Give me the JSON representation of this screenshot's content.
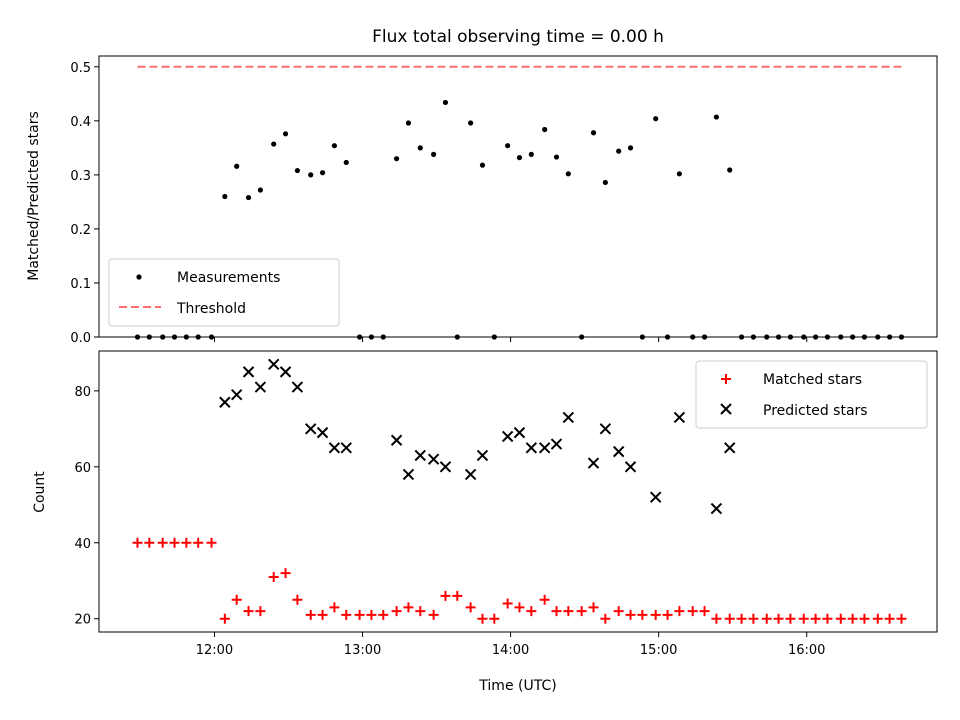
{
  "chart_data": [
    {
      "type": "scatter",
      "title": "Flux total observing time = 0.00 h",
      "xlabel": "",
      "ylabel": "Matched/Predicted stars",
      "xlim": [
        11.22,
        16.88
      ],
      "ylim": [
        0.0,
        0.52
      ],
      "yticks": [
        0.0,
        0.1,
        0.2,
        0.3,
        0.4,
        0.5
      ],
      "ytick_labels": [
        "0.0",
        "0.1",
        "0.2",
        "0.3",
        "0.4",
        "0.5"
      ],
      "legend_position": "lower-left",
      "series": [
        {
          "name": "Measurements",
          "marker": "dot",
          "color": "#000000",
          "points": [
            [
              11.48,
              0.0
            ],
            [
              11.56,
              0.0
            ],
            [
              11.65,
              0.0
            ],
            [
              11.73,
              0.0
            ],
            [
              11.81,
              0.0
            ],
            [
              11.89,
              0.0
            ],
            [
              11.98,
              0.0
            ],
            [
              12.07,
              0.26
            ],
            [
              12.15,
              0.316
            ],
            [
              12.23,
              0.258
            ],
            [
              12.31,
              0.272
            ],
            [
              12.4,
              0.357
            ],
            [
              12.48,
              0.376
            ],
            [
              12.56,
              0.308
            ],
            [
              12.65,
              0.3
            ],
            [
              12.73,
              0.304
            ],
            [
              12.81,
              0.354
            ],
            [
              12.89,
              0.323
            ],
            [
              12.98,
              0.0
            ],
            [
              13.06,
              0.0
            ],
            [
              13.14,
              0.0
            ],
            [
              13.23,
              0.33
            ],
            [
              13.31,
              0.396
            ],
            [
              13.39,
              0.35
            ],
            [
              13.48,
              0.338
            ],
            [
              13.56,
              0.434
            ],
            [
              13.64,
              0.0
            ],
            [
              13.73,
              0.396
            ],
            [
              13.81,
              0.318
            ],
            [
              13.89,
              0.0
            ],
            [
              13.98,
              0.354
            ],
            [
              14.06,
              0.332
            ],
            [
              14.14,
              0.338
            ],
            [
              14.23,
              0.384
            ],
            [
              14.31,
              0.333
            ],
            [
              14.39,
              0.302
            ],
            [
              14.48,
              0.0
            ],
            [
              14.56,
              0.378
            ],
            [
              14.64,
              0.286
            ],
            [
              14.73,
              0.344
            ],
            [
              14.81,
              0.35
            ],
            [
              14.89,
              0.0
            ],
            [
              14.98,
              0.404
            ],
            [
              15.06,
              0.0
            ],
            [
              15.14,
              0.302
            ],
            [
              15.23,
              0.0
            ],
            [
              15.31,
              0.0
            ],
            [
              15.39,
              0.407
            ],
            [
              15.48,
              0.309
            ],
            [
              15.56,
              0.0
            ],
            [
              15.64,
              0.0
            ],
            [
              15.73,
              0.0
            ],
            [
              15.81,
              0.0
            ],
            [
              15.89,
              0.0
            ],
            [
              15.98,
              0.0
            ],
            [
              16.06,
              0.0
            ],
            [
              16.14,
              0.0
            ],
            [
              16.23,
              0.0
            ],
            [
              16.31,
              0.0
            ],
            [
              16.39,
              0.0
            ],
            [
              16.48,
              0.0
            ],
            [
              16.56,
              0.0
            ],
            [
              16.64,
              0.0
            ]
          ]
        },
        {
          "name": "Threshold",
          "marker": "dashed-line",
          "color": "#ff6f6f",
          "points": [
            [
              11.48,
              0.5
            ],
            [
              16.64,
              0.5
            ]
          ]
        }
      ]
    },
    {
      "type": "scatter",
      "title": "",
      "xlabel": "Time (UTC)",
      "ylabel": "Count",
      "xlim": [
        11.22,
        16.88
      ],
      "ylim": [
        16.5,
        90.5
      ],
      "xticks": [
        12,
        13,
        14,
        15,
        16
      ],
      "xtick_labels": [
        "12:00",
        "13:00",
        "14:00",
        "15:00",
        "16:00"
      ],
      "yticks": [
        20,
        40,
        60,
        80
      ],
      "ytick_labels": [
        "20",
        "40",
        "60",
        "80"
      ],
      "legend_position": "top-right",
      "series": [
        {
          "name": "Matched stars",
          "marker": "plus",
          "color": "#ff0000",
          "points": [
            [
              11.48,
              40
            ],
            [
              11.56,
              40
            ],
            [
              11.65,
              40
            ],
            [
              11.73,
              40
            ],
            [
              11.81,
              40
            ],
            [
              11.89,
              40
            ],
            [
              11.98,
              40
            ],
            [
              12.07,
              20
            ],
            [
              12.15,
              25
            ],
            [
              12.23,
              22
            ],
            [
              12.31,
              22
            ],
            [
              12.4,
              31
            ],
            [
              12.48,
              32
            ],
            [
              12.56,
              25
            ],
            [
              12.65,
              21
            ],
            [
              12.73,
              21
            ],
            [
              12.81,
              23
            ],
            [
              12.89,
              21
            ],
            [
              12.98,
              21
            ],
            [
              13.06,
              21
            ],
            [
              13.14,
              21
            ],
            [
              13.23,
              22
            ],
            [
              13.31,
              23
            ],
            [
              13.39,
              22
            ],
            [
              13.48,
              21
            ],
            [
              13.56,
              26
            ],
            [
              13.64,
              26
            ],
            [
              13.73,
              23
            ],
            [
              13.81,
              20
            ],
            [
              13.89,
              20
            ],
            [
              13.98,
              24
            ],
            [
              14.06,
              23
            ],
            [
              14.14,
              22
            ],
            [
              14.23,
              25
            ],
            [
              14.31,
              22
            ],
            [
              14.39,
              22
            ],
            [
              14.48,
              22
            ],
            [
              14.56,
              23
            ],
            [
              14.64,
              20
            ],
            [
              14.73,
              22
            ],
            [
              14.81,
              21
            ],
            [
              14.89,
              21
            ],
            [
              14.98,
              21
            ],
            [
              15.06,
              21
            ],
            [
              15.14,
              22
            ],
            [
              15.23,
              22
            ],
            [
              15.31,
              22
            ],
            [
              15.39,
              20
            ],
            [
              15.48,
              20
            ],
            [
              15.56,
              20
            ],
            [
              15.64,
              20
            ],
            [
              15.73,
              20
            ],
            [
              15.81,
              20
            ],
            [
              15.89,
              20
            ],
            [
              15.98,
              20
            ],
            [
              16.06,
              20
            ],
            [
              16.14,
              20
            ],
            [
              16.23,
              20
            ],
            [
              16.31,
              20
            ],
            [
              16.39,
              20
            ],
            [
              16.48,
              20
            ],
            [
              16.56,
              20
            ],
            [
              16.64,
              20
            ]
          ]
        },
        {
          "name": "Predicted stars",
          "marker": "x",
          "color": "#000000",
          "points": [
            [
              12.07,
              77
            ],
            [
              12.15,
              79
            ],
            [
              12.23,
              85
            ],
            [
              12.31,
              81
            ],
            [
              12.4,
              87
            ],
            [
              12.48,
              85
            ],
            [
              12.56,
              81
            ],
            [
              12.65,
              70
            ],
            [
              12.73,
              69
            ],
            [
              12.81,
              65
            ],
            [
              12.89,
              65
            ],
            [
              13.23,
              67
            ],
            [
              13.31,
              58
            ],
            [
              13.39,
              63
            ],
            [
              13.48,
              62
            ],
            [
              13.56,
              60
            ],
            [
              13.73,
              58
            ],
            [
              13.81,
              63
            ],
            [
              13.98,
              68
            ],
            [
              14.06,
              69
            ],
            [
              14.14,
              65
            ],
            [
              14.23,
              65
            ],
            [
              14.31,
              66
            ],
            [
              14.39,
              73
            ],
            [
              14.56,
              61
            ],
            [
              14.64,
              70
            ],
            [
              14.73,
              64
            ],
            [
              14.81,
              60
            ],
            [
              14.98,
              52
            ],
            [
              15.14,
              73
            ],
            [
              15.39,
              49
            ],
            [
              15.48,
              65
            ]
          ]
        }
      ]
    }
  ]
}
